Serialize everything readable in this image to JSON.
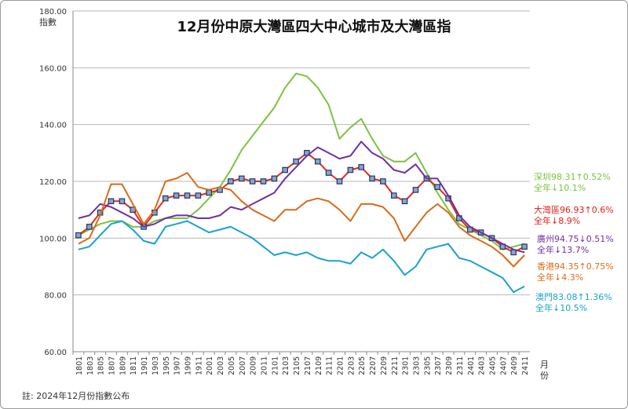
{
  "chart_data": {
    "type": "line",
    "title": "12月份中原大灣區四大中心城市及大灣區指",
    "ylabel": "指數",
    "xlabel": "月份",
    "note": "註: 2024年12月份指數公布",
    "ylim": [
      60,
      180
    ],
    "yticks": [
      "60.00",
      "80.00",
      "100.00",
      "120.00",
      "140.00",
      "160.00",
      "180.00"
    ],
    "x": [
      "1801",
      "1803",
      "1805",
      "1807",
      "1809",
      "1811",
      "1901",
      "1903",
      "1905",
      "1907",
      "1909",
      "1911",
      "2001",
      "2003",
      "2005",
      "2007",
      "2009",
      "2011",
      "2101",
      "2103",
      "2105",
      "2107",
      "2109",
      "2111",
      "2201",
      "2203",
      "2205",
      "2207",
      "2209",
      "2211",
      "2301",
      "2303",
      "2305",
      "2307",
      "2309",
      "2311",
      "2401",
      "2403",
      "2405",
      "2407",
      "2409",
      "2411"
    ],
    "series": [
      {
        "name": "深圳",
        "color": "#7dc242",
        "marker": false,
        "values": [
          101,
          103,
          105,
          106,
          106,
          104,
          104,
          106,
          107,
          107,
          107,
          110,
          114,
          118,
          124,
          131,
          136,
          141,
          146,
          153,
          158,
          157,
          153,
          147,
          135,
          139,
          142,
          135,
          129,
          127,
          127,
          130,
          123,
          116,
          110,
          105,
          103,
          101,
          99,
          96,
          97,
          98
        ]
      },
      {
        "name": "大灣區",
        "color": "#e8291c",
        "marker": true,
        "values": [
          101,
          104,
          109,
          113,
          113,
          110,
          104,
          109,
          114,
          115,
          115,
          115,
          116,
          117,
          120,
          121,
          120,
          120,
          121,
          124,
          127,
          130,
          127,
          123,
          120,
          124,
          125,
          121,
          120,
          115,
          113,
          117,
          121,
          118,
          114,
          107,
          103,
          102,
          100,
          97,
          95,
          97
        ]
      },
      {
        "name": "廣州",
        "color": "#7030a0",
        "marker": false,
        "values": [
          107,
          108,
          112,
          111,
          109,
          107,
          104,
          105,
          107,
          108,
          108,
          107,
          107,
          108,
          111,
          110,
          112,
          114,
          116,
          121,
          125,
          129,
          132,
          130,
          128,
          129,
          134,
          130,
          128,
          124,
          123,
          126,
          121,
          121,
          115,
          108,
          104,
          102,
          100,
          98,
          96,
          95
        ]
      },
      {
        "name": "香港",
        "color": "#d86c18",
        "marker": false,
        "values": [
          98,
          100,
          108,
          119,
          119,
          112,
          105,
          110,
          120,
          121,
          123,
          118,
          117,
          118,
          117,
          113,
          110,
          108,
          106,
          110,
          110,
          113,
          114,
          113,
          110,
          106,
          112,
          112,
          111,
          107,
          99,
          104,
          109,
          112,
          109,
          104,
          101,
          99,
          97,
          94,
          90,
          94
        ]
      },
      {
        "name": "澳門",
        "color": "#1aa2cc",
        "marker": false,
        "values": [
          96,
          97,
          101,
          105,
          106,
          103,
          99,
          98,
          104,
          105,
          106,
          104,
          102,
          103,
          104,
          102,
          100,
          97,
          94,
          95,
          94,
          95,
          93,
          92,
          92,
          91,
          95,
          93,
          96,
          92,
          87,
          90,
          96,
          97,
          98,
          93,
          92,
          90,
          88,
          86,
          81,
          83
        ]
      }
    ]
  },
  "annotations": [
    {
      "key": "sz",
      "line1": "深圳98.31↑0.52%",
      "line2": "全年↓10.1%",
      "color": "#7dc242"
    },
    {
      "key": "gba",
      "line1": "大灣區96.93↑0.6%",
      "line2": "全年↓8.9%",
      "color": "#e0201a"
    },
    {
      "key": "gz",
      "line1": "廣州94.75↓0.51%",
      "line2": "全年↓13.7%",
      "color": "#7030a0"
    },
    {
      "key": "hk",
      "line1": "香港94.35↑0.75%",
      "line2": "全年↓4.3%",
      "color": "#d86c18"
    },
    {
      "key": "mo",
      "line1": "澳門83.08↑1.36%",
      "line2": "全年↓10.5%",
      "color": "#1aa2cc"
    }
  ]
}
